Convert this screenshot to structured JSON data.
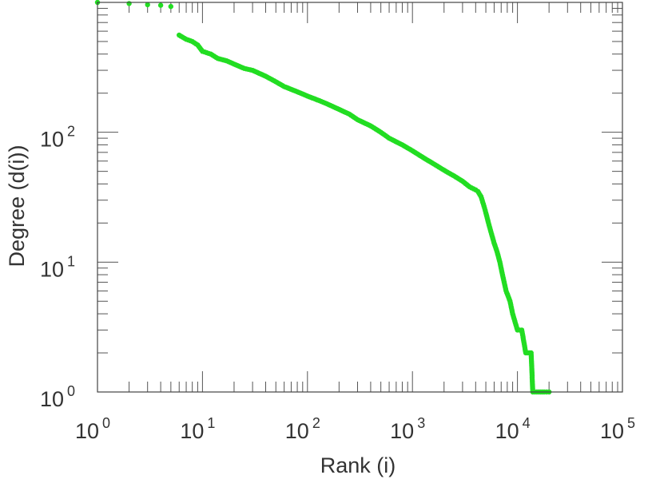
{
  "chart_data": {
    "type": "scatter",
    "title": "",
    "xlabel": "Rank (i)",
    "ylabel": "Degree (d(i))",
    "x_scale": "log",
    "y_scale": "log",
    "xlim": [
      1,
      100000
    ],
    "ylim": [
      1,
      1000
    ],
    "grid": false,
    "legend": "none",
    "marker_color": "#22dd22",
    "x_ticks": [
      {
        "base": "10",
        "exp": "0"
      },
      {
        "base": "10",
        "exp": "1"
      },
      {
        "base": "10",
        "exp": "2"
      },
      {
        "base": "10",
        "exp": "3"
      },
      {
        "base": "10",
        "exp": "4"
      },
      {
        "base": "10",
        "exp": "5"
      }
    ],
    "y_ticks": [
      {
        "base": "10",
        "exp": "0"
      },
      {
        "base": "10",
        "exp": "1"
      },
      {
        "base": "10",
        "exp": "2"
      }
    ],
    "series": [
      {
        "points": [
          [
            1,
            1000
          ],
          [
            2,
            980
          ],
          [
            3,
            960
          ],
          [
            4,
            950
          ],
          [
            5,
            930
          ],
          [
            6,
            560
          ],
          [
            7,
            520
          ],
          [
            8,
            500
          ],
          [
            9,
            470
          ],
          [
            10,
            420
          ],
          [
            12,
            400
          ],
          [
            14,
            370
          ],
          [
            17,
            355
          ],
          [
            20,
            335
          ],
          [
            25,
            310
          ],
          [
            30,
            300
          ],
          [
            40,
            270
          ],
          [
            50,
            245
          ],
          [
            60,
            225
          ],
          [
            80,
            205
          ],
          [
            100,
            190
          ],
          [
            130,
            175
          ],
          [
            160,
            163
          ],
          [
            200,
            150
          ],
          [
            250,
            138
          ],
          [
            300,
            125
          ],
          [
            400,
            112
          ],
          [
            500,
            100
          ],
          [
            600,
            90
          ],
          [
            800,
            80
          ],
          [
            1000,
            72
          ],
          [
            1300,
            63
          ],
          [
            1600,
            57
          ],
          [
            2000,
            51
          ],
          [
            2500,
            46
          ],
          [
            3000,
            42
          ],
          [
            3500,
            38
          ],
          [
            4000,
            36
          ],
          [
            4200,
            35
          ],
          [
            4500,
            32
          ],
          [
            4800,
            27
          ],
          [
            5000,
            24
          ],
          [
            5300,
            20
          ],
          [
            5600,
            17
          ],
          [
            6000,
            14
          ],
          [
            6400,
            12
          ],
          [
            6800,
            10
          ],
          [
            7200,
            8
          ],
          [
            7800,
            6
          ],
          [
            8500,
            5
          ],
          [
            9000,
            4
          ],
          [
            10000,
            3
          ],
          [
            11000,
            3
          ],
          [
            12000,
            2
          ],
          [
            13500,
            2
          ],
          [
            14000,
            1
          ],
          [
            16000,
            1
          ],
          [
            18000,
            1
          ],
          [
            20000,
            1
          ]
        ]
      }
    ]
  }
}
